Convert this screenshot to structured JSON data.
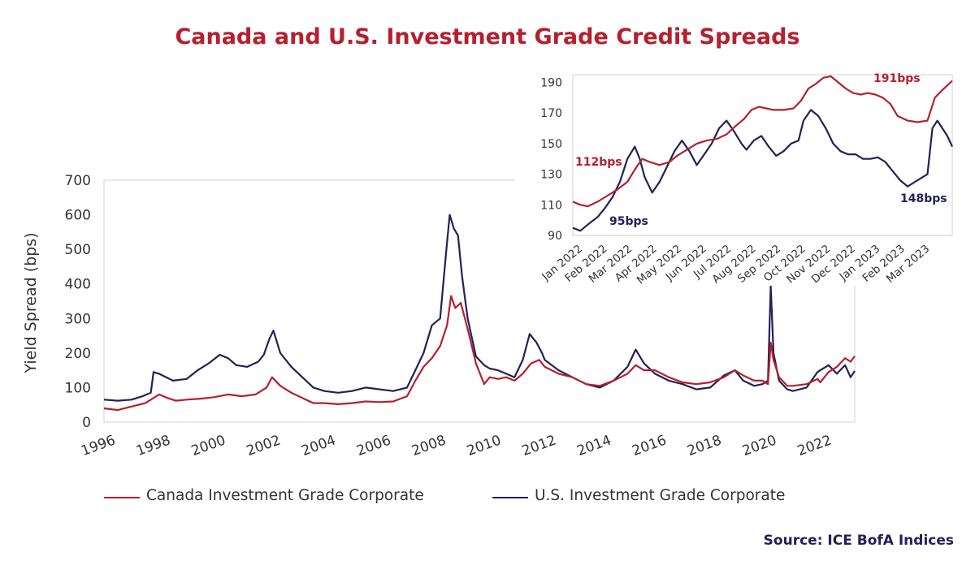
{
  "title": "Canada and U.S. Investment Grade Credit Spreads",
  "source": "Source: ICE BofA Indices",
  "colors": {
    "title": "#b5202e",
    "canada": "#b5202e",
    "us": "#232157",
    "source": "#232157"
  },
  "legend": [
    {
      "label": "Canada Investment Grade Corporate",
      "color": "#b5202e"
    },
    {
      "label": "U.S. Investment Grade Corporate",
      "color": "#232157"
    }
  ],
  "chart_data": [
    {
      "type": "line",
      "title": "",
      "xlabel": "",
      "ylabel": "Yield Spread (bps)",
      "xlim": [
        1996,
        2023.25
      ],
      "ylim": [
        0,
        700
      ],
      "yticks": [
        0,
        100,
        200,
        300,
        400,
        500,
        600,
        700
      ],
      "xticks": [
        "1996",
        "1998",
        "2000",
        "2002",
        "2004",
        "2006",
        "2008",
        "2010",
        "2012",
        "2014",
        "2016",
        "2018",
        "2020",
        "2022"
      ],
      "grid": false,
      "legend_position": "bottom",
      "series": [
        {
          "name": "Canada Investment Grade Corporate",
          "x": [
            1996.0,
            1996.5,
            1997.0,
            1997.5,
            1998.0,
            1998.3,
            1998.6,
            1999.0,
            1999.5,
            2000.0,
            2000.5,
            2001.0,
            2001.5,
            2001.9,
            2002.1,
            2002.4,
            2002.8,
            2003.2,
            2003.6,
            2004.0,
            2004.5,
            2005.0,
            2005.5,
            2006.0,
            2006.5,
            2007.0,
            2007.3,
            2007.6,
            2007.9,
            2008.2,
            2008.45,
            2008.6,
            2008.75,
            2008.95,
            2009.2,
            2009.5,
            2009.8,
            2010.0,
            2010.3,
            2010.6,
            2010.9,
            2011.2,
            2011.5,
            2011.8,
            2012.0,
            2012.5,
            2013.0,
            2013.5,
            2014.0,
            2014.5,
            2015.0,
            2015.3,
            2015.6,
            2016.0,
            2016.5,
            2017.0,
            2017.5,
            2018.0,
            2018.5,
            2018.9,
            2019.2,
            2019.6,
            2019.9,
            2020.1,
            2020.2,
            2020.3,
            2020.5,
            2020.8,
            2021.0,
            2021.5,
            2021.9,
            2022.0,
            2022.3,
            2022.6,
            2022.9,
            2023.1,
            2023.25
          ],
          "values": [
            40,
            35,
            45,
            55,
            80,
            70,
            62,
            65,
            68,
            72,
            80,
            75,
            80,
            100,
            130,
            105,
            85,
            70,
            55,
            55,
            52,
            55,
            60,
            58,
            60,
            75,
            120,
            160,
            185,
            220,
            280,
            365,
            330,
            345,
            270,
            170,
            110,
            130,
            125,
            130,
            120,
            140,
            170,
            180,
            160,
            140,
            130,
            110,
            105,
            120,
            140,
            165,
            150,
            150,
            130,
            115,
            110,
            115,
            130,
            150,
            135,
            120,
            120,
            110,
            230,
            180,
            130,
            105,
            105,
            110,
            125,
            115,
            145,
            160,
            185,
            175,
            191
          ]
        },
        {
          "name": "U.S. Investment Grade Corporate",
          "x": [
            1996.0,
            1996.5,
            1997.0,
            1997.4,
            1997.7,
            1997.8,
            1998.0,
            1998.5,
            1999.0,
            1999.4,
            1999.8,
            2000.2,
            2000.5,
            2000.8,
            2001.2,
            2001.6,
            2001.8,
            2002.0,
            2002.15,
            2002.4,
            2002.8,
            2003.2,
            2003.6,
            2004.0,
            2004.5,
            2005.0,
            2005.5,
            2006.0,
            2006.5,
            2007.0,
            2007.3,
            2007.6,
            2007.9,
            2008.2,
            2008.45,
            2008.55,
            2008.7,
            2008.85,
            2009.0,
            2009.2,
            2009.5,
            2009.8,
            2010.0,
            2010.3,
            2010.6,
            2010.9,
            2011.2,
            2011.45,
            2011.7,
            2011.9,
            2012.0,
            2012.5,
            2013.0,
            2013.5,
            2014.0,
            2014.5,
            2015.0,
            2015.3,
            2015.6,
            2016.0,
            2016.5,
            2017.0,
            2017.5,
            2018.0,
            2018.5,
            2018.9,
            2019.2,
            2019.6,
            2019.9,
            2020.1,
            2020.2,
            2020.3,
            2020.5,
            2020.8,
            2021.0,
            2021.5,
            2021.9,
            2022.0,
            2022.3,
            2022.6,
            2022.9,
            2023.1,
            2023.25
          ],
          "values": [
            65,
            62,
            65,
            75,
            85,
            145,
            140,
            120,
            125,
            150,
            170,
            195,
            185,
            165,
            160,
            175,
            195,
            240,
            265,
            200,
            160,
            130,
            100,
            90,
            85,
            90,
            100,
            95,
            90,
            100,
            150,
            200,
            280,
            300,
            520,
            600,
            560,
            540,
            420,
            300,
            190,
            165,
            155,
            150,
            140,
            130,
            180,
            255,
            230,
            200,
            180,
            150,
            130,
            110,
            100,
            120,
            160,
            210,
            170,
            140,
            120,
            110,
            95,
            100,
            135,
            150,
            120,
            105,
            110,
            120,
            395,
            200,
            120,
            95,
            90,
            100,
            145,
            150,
            165,
            140,
            165,
            130,
            148
          ]
        }
      ]
    },
    {
      "type": "line",
      "title": "",
      "xlabel": "",
      "ylabel": "",
      "xlim": [
        0,
        15.3
      ],
      "ylim": [
        90,
        195
      ],
      "yticks": [
        90,
        110,
        130,
        150,
        170,
        190
      ],
      "xticks": [
        "Jan 2022",
        "Feb 2022",
        "Mar 2022",
        "Apr 2022",
        "May 2022",
        "Jun 2022",
        "Jul 2022",
        "Aug 2022",
        "Sep 2022",
        "Oct 2022",
        "Nov 2022",
        "Dec 2022",
        "Jan 2023",
        "Feb 2023",
        "Mar 2023"
      ],
      "grid": false,
      "annotations": [
        {
          "text": "112bps",
          "series": "Canada Investment Grade Corporate",
          "value": 112
        },
        {
          "text": "191bps",
          "series": "Canada Investment Grade Corporate",
          "value": 191
        },
        {
          "text": "95bps",
          "series": "U.S. Investment Grade Corporate",
          "value": 95
        },
        {
          "text": "148bps",
          "series": "U.S. Investment Grade Corporate",
          "value": 148
        }
      ],
      "series": [
        {
          "name": "Canada Investment Grade Corporate",
          "x": [
            0,
            0.3,
            0.6,
            1.0,
            1.4,
            1.8,
            2.2,
            2.5,
            2.8,
            3.1,
            3.5,
            3.9,
            4.2,
            4.6,
            5.0,
            5.4,
            5.8,
            6.2,
            6.6,
            6.9,
            7.2,
            7.5,
            7.8,
            8.1,
            8.5,
            8.9,
            9.2,
            9.5,
            9.8,
            10.1,
            10.4,
            10.7,
            11.0,
            11.3,
            11.6,
            11.9,
            12.2,
            12.5,
            12.8,
            13.1,
            13.5,
            13.9,
            14.3,
            14.6,
            14.9,
            15.1,
            15.3
          ],
          "values": [
            112,
            110,
            109,
            112,
            116,
            120,
            125,
            133,
            140,
            138,
            136,
            138,
            142,
            146,
            150,
            152,
            153,
            156,
            162,
            166,
            172,
            174,
            173,
            172,
            172,
            173,
            178,
            186,
            189,
            193,
            194,
            190,
            186,
            183,
            182,
            183,
            182,
            180,
            176,
            168,
            165,
            164,
            165,
            180,
            185,
            188,
            191
          ]
        },
        {
          "name": "U.S. Investment Grade Corporate",
          "x": [
            0,
            0.3,
            0.6,
            1.0,
            1.3,
            1.6,
            1.9,
            2.2,
            2.5,
            2.7,
            2.9,
            3.2,
            3.5,
            3.8,
            4.1,
            4.4,
            4.7,
            5.0,
            5.3,
            5.6,
            5.9,
            6.2,
            6.5,
            6.8,
            7.0,
            7.3,
            7.6,
            7.9,
            8.2,
            8.5,
            8.8,
            9.1,
            9.3,
            9.6,
            9.9,
            10.2,
            10.5,
            10.8,
            11.1,
            11.4,
            11.7,
            12.0,
            12.3,
            12.6,
            12.9,
            13.2,
            13.5,
            13.8,
            14.1,
            14.3,
            14.5,
            14.7,
            14.9,
            15.1,
            15.3
          ],
          "values": [
            95,
            93,
            97,
            102,
            108,
            115,
            125,
            140,
            148,
            140,
            128,
            118,
            125,
            135,
            145,
            152,
            145,
            136,
            143,
            150,
            160,
            165,
            158,
            150,
            146,
            152,
            155,
            148,
            142,
            145,
            150,
            152,
            165,
            172,
            168,
            160,
            150,
            145,
            143,
            143,
            140,
            140,
            141,
            138,
            132,
            126,
            122,
            125,
            128,
            130,
            160,
            165,
            160,
            155,
            148
          ]
        }
      ]
    }
  ]
}
